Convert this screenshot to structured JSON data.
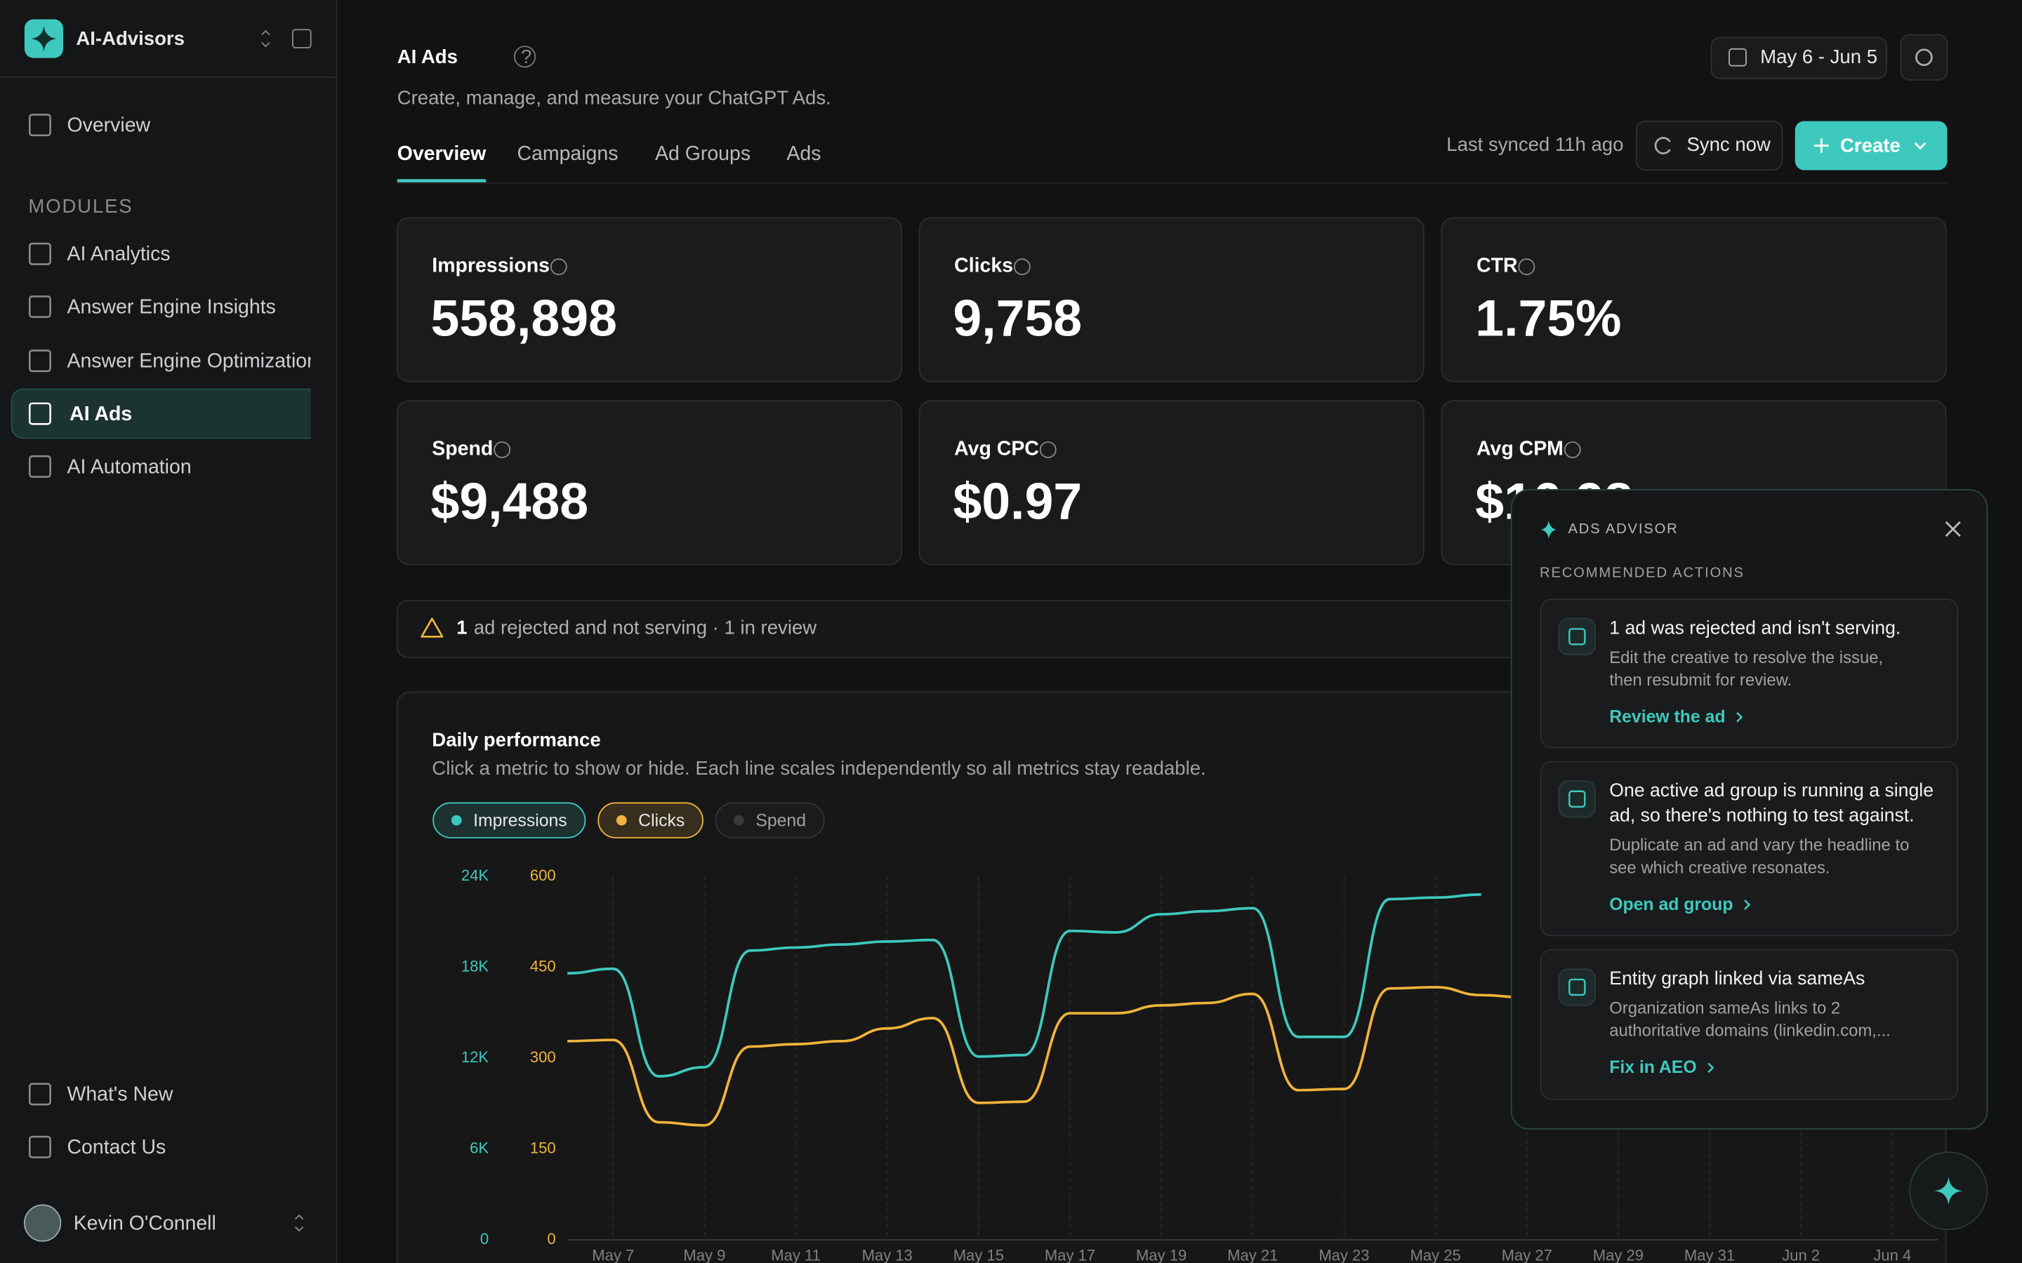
{
  "sidebar": {
    "brand": "AI-Advisors",
    "nav": [
      "Overview"
    ],
    "section": "MODULES",
    "modules": [
      "AI Analytics",
      "Answer Engine Insights",
      "Answer Engine Optimization",
      "AI Ads",
      "AI Automation"
    ],
    "active_module": 3,
    "footer_links": [
      "What's New",
      "Contact Us"
    ],
    "user": "Kevin O'Connell"
  },
  "header": {
    "title": "AI Ads",
    "subtitle": "Create, manage, and measure your ChatGPT Ads.",
    "date_range": "May 6 - Jun 5",
    "tabs": [
      "Overview",
      "Campaigns",
      "Ad Groups",
      "Ads"
    ],
    "active_tab": 0,
    "last_synced": "Last synced 11h ago",
    "sync_button": "Sync now",
    "create_button": "Create"
  },
  "kpis": [
    {
      "label": "Impressions",
      "value": "558,898"
    },
    {
      "label": "Clicks",
      "value": "9,758"
    },
    {
      "label": "CTR",
      "value": "1.75%"
    },
    {
      "label": "Spend",
      "value": "$9,488"
    },
    {
      "label": "Avg CPC",
      "value": "$0.97"
    },
    {
      "label": "Avg CPM",
      "value": "$16.98"
    }
  ],
  "alert": {
    "count": "1",
    "text": "ad rejected and not serving · 1 in review"
  },
  "chart_data": {
    "type": "line",
    "title": "Daily performance",
    "subtitle": "Click a metric to show or hide. Each line scales independently so all metrics stay readable.",
    "categories": [
      null,
      "May 7",
      null,
      "May 9",
      null,
      "May 11",
      null,
      "May 13",
      null,
      "May 15",
      null,
      "May 17",
      null,
      "May 19",
      null,
      "May 21",
      null,
      "May 23",
      null,
      "May 25",
      null,
      "May 27",
      null,
      "May 29",
      null,
      "May 31",
      null,
      "Jun 2",
      null,
      "Jun 4",
      null
    ],
    "series": [
      {
        "name": "Impressions",
        "color": "#3ec9bf",
        "axis": "y",
        "visible": true,
        "values": [
          17600,
          17900,
          10800,
          11400,
          19100,
          19300,
          19500,
          19700,
          19800,
          12100,
          12200,
          20400,
          20300,
          21500,
          21700,
          21900,
          13400,
          13400,
          22500,
          22600,
          22800,
          null,
          null,
          null,
          null,
          null,
          null,
          null,
          null,
          null,
          null
        ]
      },
      {
        "name": "Clicks",
        "color": "#f0b43c",
        "axis": "y2",
        "visible": true,
        "values": [
          328,
          330,
          194,
          189,
          319,
          323,
          328,
          349,
          366,
          226,
          228,
          374,
          374,
          387,
          391,
          406,
          247,
          249,
          415,
          417,
          404,
          400,
          null,
          null,
          null,
          null,
          null,
          null,
          null,
          null,
          null
        ]
      },
      {
        "name": "Spend",
        "color": "#5a5b5d",
        "axis": "y",
        "visible": false,
        "values": [
          null,
          null,
          null,
          null,
          null,
          null,
          null,
          null,
          null,
          null,
          null,
          null,
          null,
          null,
          null,
          null,
          null,
          null,
          null,
          null,
          null,
          null,
          null,
          null,
          null,
          null,
          null,
          null,
          null,
          null,
          null
        ]
      }
    ],
    "ylim": [
      0,
      24000
    ],
    "yticks": [
      0,
      {
        "value": 6000,
        "label": "6K"
      },
      {
        "value": 12000,
        "label": "12K"
      },
      {
        "value": 18000,
        "label": "18K"
      },
      {
        "value": 24000,
        "label": "24K"
      }
    ],
    "y2lim": [
      0,
      600
    ],
    "y2ticks": [
      0,
      150,
      300,
      450,
      600
    ],
    "grid": true
  },
  "advisor": {
    "title": "ADS ADVISOR",
    "section": "RECOMMENDED ACTIONS",
    "cards": [
      {
        "title": [
          "1 ad was rejected and isn't serving."
        ],
        "description": [
          "Edit the creative to resolve the issue,",
          "then resubmit for review."
        ],
        "link": "Review the ad"
      },
      {
        "title": [
          "One active ad group is running a single",
          "ad, so there's nothing to test against."
        ],
        "description": [
          "Duplicate an ad and vary the headline to",
          "see which creative resonates."
        ],
        "link": "Open ad group"
      },
      {
        "title": [
          "Entity graph linked via sameAs"
        ],
        "description": [
          "Organization sameAs links to 2",
          "authoritative domains (linkedin.com,..."
        ],
        "link": "Fix in AEO"
      }
    ]
  }
}
